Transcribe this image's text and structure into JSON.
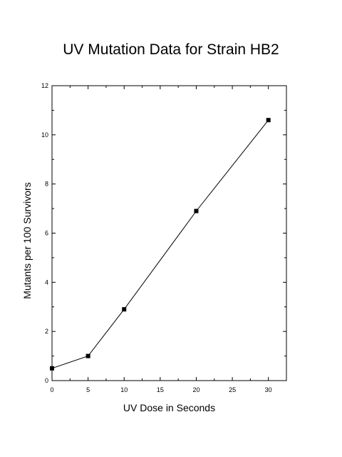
{
  "chart_data": {
    "type": "line",
    "title": "UV Mutation Data for Strain HB2",
    "xlabel": "UV Dose in Seconds",
    "ylabel": "Mutants per 100 Survivors",
    "xlim": [
      0,
      32.5
    ],
    "ylim": [
      0,
      12
    ],
    "xticks": [
      0,
      5,
      10,
      15,
      20,
      25,
      30
    ],
    "yticks": [
      0,
      2,
      4,
      6,
      8,
      10,
      12
    ],
    "grid": false,
    "marker": "square",
    "line_color": "#000000",
    "series": [
      {
        "x": [
          0,
          5,
          10,
          20,
          30
        ],
        "y": [
          0.5,
          1.0,
          2.9,
          6.9,
          10.6
        ]
      }
    ]
  }
}
